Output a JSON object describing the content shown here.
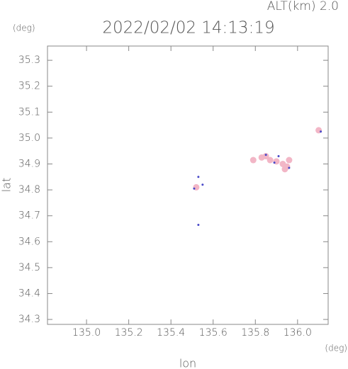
{
  "chart_data": {
    "type": "scatter",
    "title": "2022/02/02 14:13:19",
    "annotation": "ALT(km)  2.0",
    "y_unit": "(deg)",
    "x_unit": "(deg)",
    "xlabel": "lon",
    "ylabel": "lat",
    "xlim": [
      134.815,
      136.145
    ],
    "ylim": [
      34.281,
      35.355
    ],
    "xticks": [
      {
        "value": 135.0,
        "label": "135.0"
      },
      135.2,
      135.4,
      135.6,
      135.8,
      {
        "value": 136.0,
        "label": "136.0"
      }
    ],
    "yticks": [
      34.3,
      34.4,
      34.5,
      34.6,
      34.7,
      34.8,
      34.9,
      {
        "value": 35.0,
        "label": "35.0"
      },
      35.1,
      35.2,
      35.3
    ],
    "series": [
      {
        "color": "#f2b6c6",
        "x": [
          135.79,
          135.83,
          135.85,
          135.87,
          135.9,
          135.93,
          135.95,
          135.96,
          135.94,
          136.1,
          135.52
        ],
        "y": [
          34.915,
          34.925,
          34.93,
          34.915,
          34.91,
          34.9,
          34.89,
          34.915,
          34.88,
          35.03,
          34.81
        ]
      },
      {
        "color": "#4848c8",
        "x": [
          135.85,
          135.91,
          135.89,
          135.96,
          136.11,
          135.51,
          135.53,
          135.55,
          135.53
        ],
        "y": [
          34.935,
          34.93,
          34.905,
          34.885,
          35.025,
          34.805,
          34.85,
          34.82,
          34.665
        ]
      }
    ]
  }
}
